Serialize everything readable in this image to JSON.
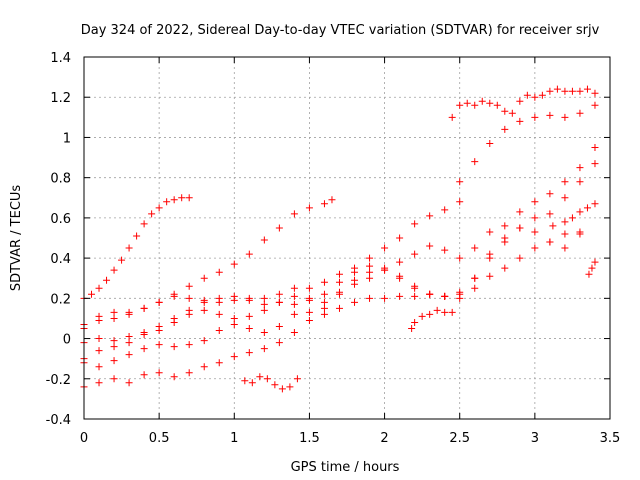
{
  "chart_data": {
    "type": "scatter",
    "title": "Day 324 of 2022, Sidereal Day-to-day VTEC variation (SDTVAR) for receiver srjv",
    "xlabel": "GPS time / hours",
    "ylabel": "SDTVAR / TECUs",
    "xlim": [
      0,
      3.5
    ],
    "ylim": [
      -0.4,
      1.4
    ],
    "x_ticks": [
      "0",
      "0.5",
      "1",
      "1.5",
      "2",
      "2.5",
      "3",
      "3.5"
    ],
    "y_ticks": [
      "-0.4",
      "-0.2",
      "0",
      "0.2",
      "0.4",
      "0.6",
      "0.8",
      "1",
      "1.2",
      "1.4"
    ],
    "grid": true,
    "marker": "plus",
    "color": "#ff0000",
    "series": [
      {
        "x": [
          0,
          0.05,
          0.1,
          0.15,
          0.2,
          0.25,
          0.3,
          0.35,
          0.4,
          0.45,
          0.5,
          0.55,
          0.6,
          0.65,
          0.7
        ],
        "y": [
          0.2,
          0.22,
          0.25,
          0.29,
          0.34,
          0.39,
          0.45,
          0.51,
          0.57,
          0.62,
          0.65,
          0.68,
          0.69,
          0.7,
          0.7
        ]
      },
      {
        "x": [
          0,
          0.1,
          0.2,
          0.3,
          0.4,
          0.5,
          0.6,
          0.7,
          0.8,
          0.9,
          1.0,
          1.1,
          1.2,
          1.3,
          1.4,
          1.5,
          1.6,
          1.65
        ],
        "y": [
          0.07,
          0.09,
          0.1,
          0.13,
          0.15,
          0.18,
          0.22,
          0.26,
          0.3,
          0.33,
          0.37,
          0.42,
          0.49,
          0.55,
          0.62,
          0.65,
          0.67,
          0.69
        ]
      },
      {
        "x": [
          0,
          0.1,
          0.2,
          0.3,
          0.4,
          0.5,
          0.6,
          0.7,
          0.8,
          0.9,
          1.0,
          1.1,
          1.2,
          1.3,
          1.4,
          1.5,
          1.6,
          1.7,
          1.8,
          1.9,
          2.0,
          2.1,
          2.2,
          2.3,
          2.4,
          2.5
        ],
        "y": [
          0.05,
          0.11,
          0.13,
          0.12,
          0.15,
          0.18,
          0.21,
          0.2,
          0.19,
          0.18,
          0.19,
          0.2,
          0.2,
          0.18,
          0.17,
          0.19,
          0.22,
          0.28,
          0.33,
          0.4,
          0.45,
          0.5,
          0.57,
          0.61,
          0.64,
          0.68
        ]
      },
      {
        "x": [
          2.45,
          2.5,
          2.55,
          2.6,
          2.65,
          2.7,
          2.75,
          2.8,
          2.85,
          2.9,
          2.95,
          3.0,
          3.05,
          3.1,
          3.15,
          3.2,
          3.25,
          3.3,
          3.35,
          3.4
        ],
        "y": [
          1.1,
          1.16,
          1.17,
          1.16,
          1.18,
          1.17,
          1.16,
          1.13,
          1.12,
          1.18,
          1.21,
          1.2,
          1.21,
          1.23,
          1.24,
          1.23,
          1.23,
          1.23,
          1.24,
          1.22
        ]
      },
      {
        "x": [
          2.5,
          2.6,
          2.7,
          2.8,
          2.9,
          3.0,
          3.1,
          3.2,
          3.3,
          3.4
        ],
        "y": [
          0.78,
          0.88,
          0.97,
          1.04,
          1.08,
          1.1,
          1.11,
          1.1,
          1.12,
          1.16
        ]
      },
      {
        "x": [
          0,
          0.1,
          0.2,
          0.3,
          0.4,
          0.5,
          0.6,
          0.7,
          0.8,
          0.9,
          1.0,
          1.1,
          1.2,
          1.3,
          1.4,
          1.5,
          1.6,
          1.7,
          1.8,
          1.9,
          2.0,
          2.1,
          2.2,
          2.3,
          2.4,
          2.5,
          2.6,
          2.7,
          2.8,
          2.9,
          3.0,
          3.1,
          3.2,
          3.3,
          3.4
        ],
        "y": [
          -0.1,
          -0.06,
          -0.04,
          -0.02,
          0.02,
          0.06,
          0.1,
          0.14,
          0.18,
          0.2,
          0.21,
          0.19,
          0.17,
          0.22,
          0.25,
          0.2,
          0.18,
          0.23,
          0.27,
          0.3,
          0.34,
          0.38,
          0.42,
          0.46,
          0.44,
          0.4,
          0.45,
          0.53,
          0.56,
          0.63,
          0.68,
          0.72,
          0.78,
          0.85,
          0.95
        ]
      },
      {
        "x": [
          0,
          0.1,
          0.2,
          0.3,
          0.4,
          0.5,
          0.6,
          0.7,
          0.8,
          0.9,
          1.0,
          1.1,
          1.2,
          1.3,
          1.4,
          1.5,
          1.6,
          1.7,
          1.8,
          1.9,
          2.0,
          2.1,
          2.2,
          2.3,
          2.4,
          2.5,
          2.6,
          2.7,
          2.8,
          2.9,
          3.0,
          3.1,
          3.2,
          3.3,
          3.4
        ],
        "y": [
          -0.02,
          0.0,
          -0.01,
          0.01,
          0.03,
          0.04,
          0.08,
          0.12,
          0.14,
          0.12,
          0.1,
          0.11,
          0.14,
          0.18,
          0.21,
          0.25,
          0.28,
          0.32,
          0.35,
          0.36,
          0.34,
          0.3,
          0.25,
          0.22,
          0.21,
          0.23,
          0.3,
          0.4,
          0.48,
          0.55,
          0.6,
          0.62,
          0.7,
          0.78,
          0.87
        ]
      },
      {
        "x": [
          0,
          0.1,
          0.2,
          0.3,
          0.4,
          0.5,
          0.6,
          0.7,
          0.8,
          0.9,
          1.0,
          1.1,
          1.2,
          1.3,
          1.4,
          1.5,
          1.6,
          1.7,
          1.8,
          1.9,
          2.0,
          2.1,
          2.2,
          2.3,
          2.4,
          2.5,
          2.6,
          2.7,
          2.8,
          2.9,
          3.0,
          3.1,
          3.2,
          3.3
        ],
        "y": [
          -0.12,
          -0.14,
          -0.11,
          -0.08,
          -0.05,
          -0.03,
          -0.04,
          -0.03,
          -0.01,
          0.04,
          0.07,
          0.05,
          0.03,
          0.06,
          0.12,
          0.13,
          0.12,
          0.15,
          0.18,
          0.2,
          0.2,
          0.21,
          0.21,
          0.22,
          0.21,
          0.22,
          0.3,
          0.42,
          0.5,
          0.55,
          0.53,
          0.48,
          0.45,
          0.52
        ]
      },
      {
        "x": [
          0,
          0.1,
          0.2,
          0.3,
          0.4,
          0.5,
          0.6,
          0.7,
          0.8,
          0.9,
          1.0,
          1.1,
          1.2,
          1.3,
          1.4,
          1.5,
          1.6,
          1.7,
          1.8,
          1.9,
          2.0,
          2.1,
          2.2,
          2.3,
          2.4,
          2.5,
          2.6,
          2.7,
          2.8,
          2.9,
          3.0,
          3.1,
          3.2,
          3.3
        ],
        "y": [
          -0.24,
          -0.22,
          -0.2,
          -0.22,
          -0.18,
          -0.17,
          -0.19,
          -0.17,
          -0.14,
          -0.12,
          -0.09,
          -0.07,
          -0.05,
          -0.02,
          0.03,
          0.09,
          0.15,
          0.22,
          0.29,
          0.33,
          0.35,
          0.31,
          0.26,
          0.22,
          0.21,
          0.2,
          0.25,
          0.31,
          0.35,
          0.4,
          0.45,
          0.48,
          0.52,
          0.53
        ]
      },
      {
        "x": [
          1.07,
          1.12,
          1.17,
          1.22,
          1.27,
          1.32,
          1.37,
          1.42
        ],
        "y": [
          -0.21,
          -0.22,
          -0.19,
          -0.2,
          -0.23,
          -0.25,
          -0.24,
          -0.2
        ]
      },
      {
        "x": [
          2.18,
          2.2,
          2.25,
          2.3,
          2.35,
          2.4,
          2.45
        ],
        "y": [
          0.05,
          0.08,
          0.11,
          0.12,
          0.14,
          0.13,
          0.13
        ]
      },
      {
        "x": [
          3.12,
          3.2,
          3.25,
          3.3,
          3.35,
          3.4
        ],
        "y": [
          0.56,
          0.58,
          0.6,
          0.63,
          0.65,
          0.67
        ]
      },
      {
        "x": [
          3.36,
          3.38,
          3.4
        ],
        "y": [
          0.32,
          0.35,
          0.38
        ]
      }
    ]
  }
}
